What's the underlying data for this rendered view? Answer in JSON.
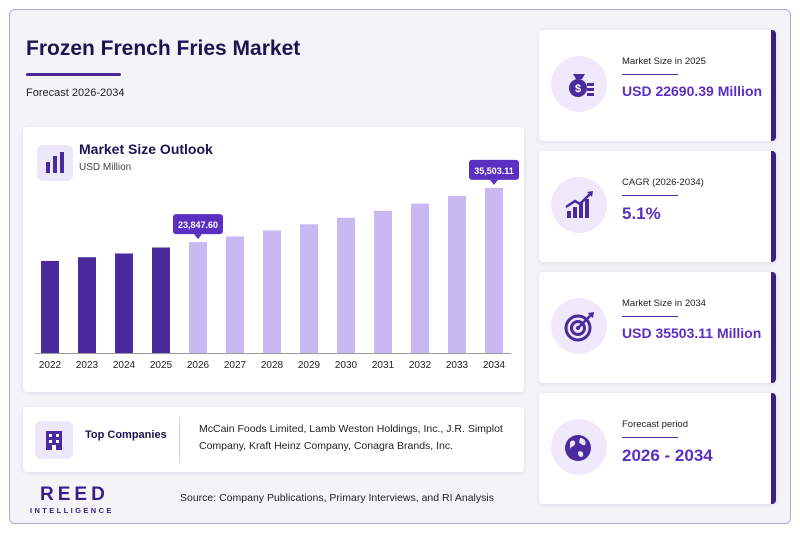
{
  "header": {
    "title": "Frozen French Fries Market",
    "subtitle": "Forecast 2026-2034"
  },
  "chart_card": {
    "title": "Market Size Outlook",
    "unit": "USD Million",
    "icon": "bar-chart-icon"
  },
  "chart_data": {
    "type": "bar",
    "categories": [
      "2022",
      "2023",
      "2024",
      "2025",
      "2026",
      "2027",
      "2028",
      "2029",
      "2030",
      "2031",
      "2032",
      "2033",
      "2034"
    ],
    "values": [
      19800,
      20600,
      21400,
      22690.39,
      23847.6,
      25060,
      26340,
      27680,
      29090,
      30570,
      32130,
      33770,
      35503.11
    ],
    "annotations": [
      {
        "category": "2026",
        "label": "23,847.60"
      },
      {
        "category": "2034",
        "label": "35,503.11"
      }
    ],
    "historical_color": "#4b2a9e",
    "forecast_color": "#c8b9f2",
    "annotation_color": "#5b2fc2",
    "ylim": [
      0,
      40000
    ],
    "grid": false
  },
  "companies": {
    "label": "Top Companies",
    "icon": "building-icon",
    "text": "McCain Foods Limited, Lamb Weston Holdings, Inc., J.R. Simplot Company, Kraft Heinz Company, Conagra Brands, Inc."
  },
  "logo": {
    "main": "REED",
    "sub": "INTELLIGENCE"
  },
  "source": "Source: Company Publications, Primary Interviews, and RI Analysis",
  "stats": [
    {
      "label": "Market Size in 2025",
      "value": "USD 22690.39 Million",
      "icon": "money-bag-icon"
    },
    {
      "label": "CAGR (2026-2034)",
      "value": "5.1%",
      "icon": "growth-chart-icon"
    },
    {
      "label": "Market Size in 2034",
      "value": "USD 35503.11 Million",
      "icon": "target-icon"
    },
    {
      "label": "Forecast period",
      "value": "2026 - 2034",
      "icon": "globe-icon"
    }
  ],
  "colors": {
    "accent": "#3a1f8a",
    "value_text": "#5b2fc2",
    "title_text": "#1a1450"
  }
}
